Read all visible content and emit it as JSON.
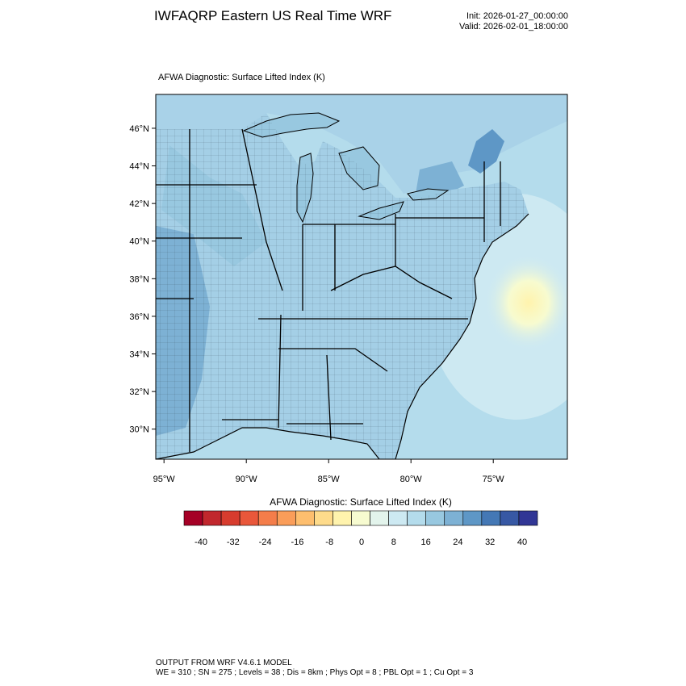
{
  "header": {
    "title": "IWFAQRP Eastern US Real Time WRF",
    "init": "Init: 2026-01-27_00:00:00",
    "valid": "Valid: 2026-02-01_18:00:00"
  },
  "map": {
    "subtitle": "AFWA Diagnostic: Surface Lifted Index   (K)",
    "lat_labels": [
      "46°N",
      "44°N",
      "42°N",
      "40°N",
      "38°N",
      "36°N",
      "34°N",
      "32°N",
      "30°N"
    ],
    "lon_labels": [
      "95°W",
      "90°W",
      "85°W",
      "80°W",
      "75°W"
    ],
    "lat_range": [
      28.4,
      47.8
    ],
    "lon_range": [
      -95.5,
      -70.5
    ]
  },
  "colorbar": {
    "title": "AFWA Diagnostic: Surface Lifted Index  (K)",
    "labels": [
      "-40",
      "-32",
      "-24",
      "-16",
      "-8",
      "0",
      "8",
      "16",
      "24",
      "32",
      "40"
    ],
    "colors": [
      "#a50026",
      "#c1272d",
      "#d73c2e",
      "#e9573a",
      "#f47d4a",
      "#fa9d59",
      "#fdbe6e",
      "#fedb8b",
      "#fff3ad",
      "#f7fbd0",
      "#e3f4ec",
      "#cde9f2",
      "#b4dcec",
      "#98c8e0",
      "#7db1d4",
      "#5e97c6",
      "#4478b5",
      "#3758a4",
      "#313695"
    ]
  },
  "footer": {
    "line1": "OUTPUT FROM WRF V4.6.1 MODEL",
    "line2": "WE = 310 ; SN = 275 ; Levels = 38 ; Dis = 8km ; Phys Opt = 8 ; PBL Opt = 1 ; Cu Opt = 3"
  }
}
